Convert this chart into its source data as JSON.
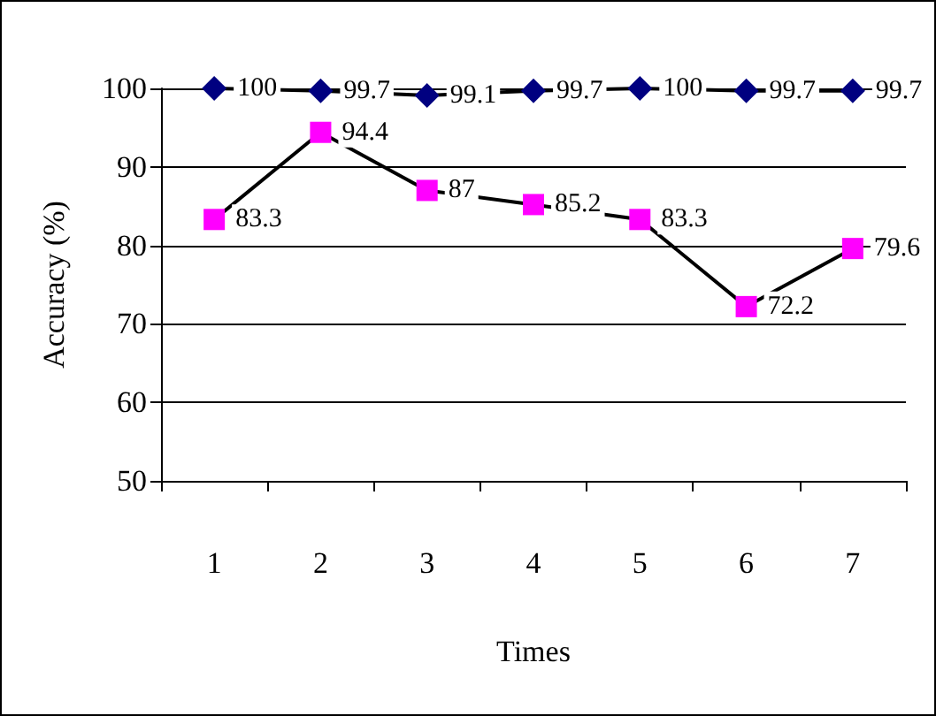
{
  "chart_data": {
    "type": "line",
    "xlabel": "Times",
    "ylabel": "Accuracy (%)",
    "categories": [
      "1",
      "2",
      "3",
      "4",
      "5",
      "6",
      "7"
    ],
    "series": [
      {
        "color": "#000080",
        "marker": "diamond",
        "values": [
          100,
          99.7,
          99.1,
          99.7,
          100,
          99.7,
          99.7
        ]
      },
      {
        "color": "#ff00ff",
        "marker": "square",
        "values": [
          83.3,
          94.4,
          87,
          85.2,
          83.3,
          72.2,
          79.6
        ]
      }
    ],
    "ylim": [
      50,
      100
    ],
    "yticks": [
      50,
      60,
      70,
      80,
      90,
      100
    ],
    "grid": "y",
    "data_labels": true
  }
}
